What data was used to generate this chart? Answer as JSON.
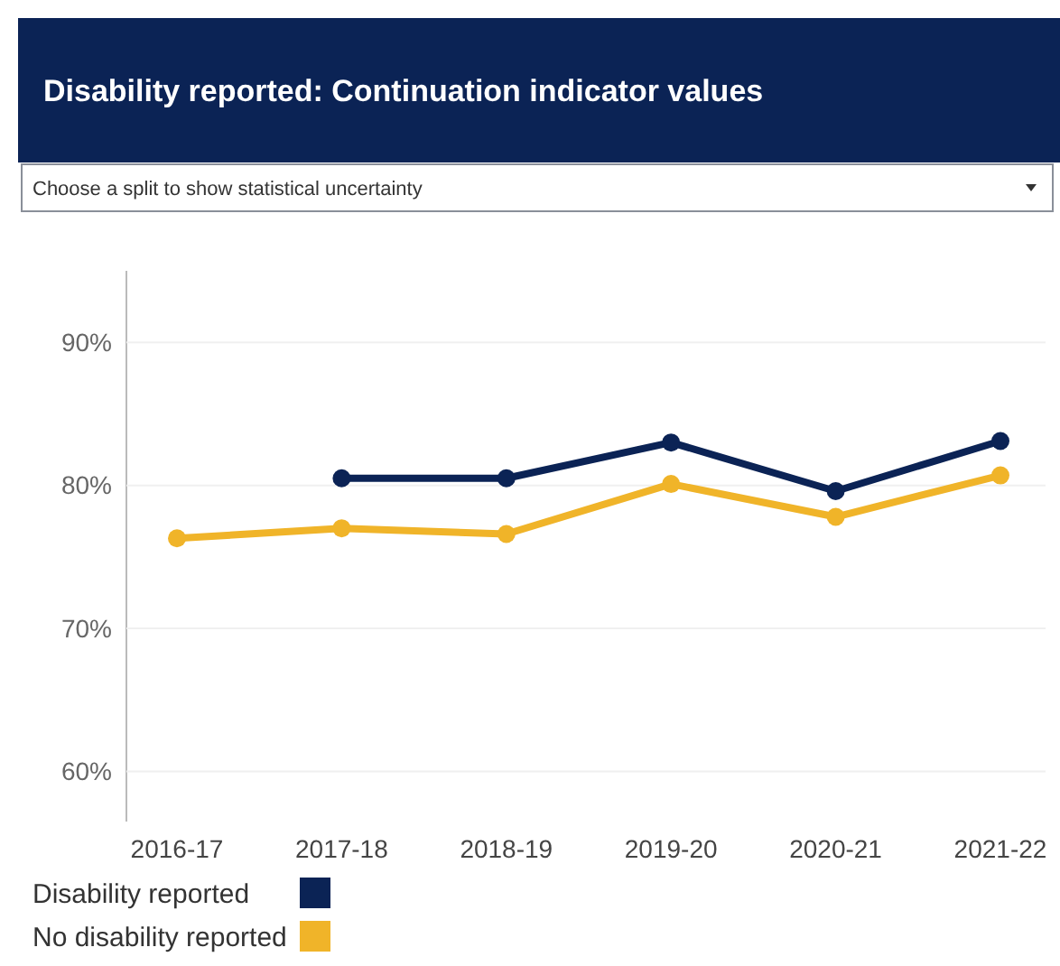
{
  "chart_data": {
    "type": "line",
    "title": "Disability reported: Continuation indicator values",
    "annotations": [
      "Choose a split to show statistical uncertainty"
    ],
    "categories": [
      "2016-17",
      "2017-18",
      "2018-19",
      "2019-20",
      "2020-21",
      "2021-22"
    ],
    "series": [
      {
        "name": "Disability reported",
        "color": "#0b2355",
        "values": [
          null,
          80.5,
          80.5,
          83.0,
          79.6,
          83.1
        ]
      },
      {
        "name": "No disability reported",
        "color": "#f0b429",
        "values": [
          76.3,
          77.0,
          76.6,
          80.1,
          77.8,
          80.7
        ]
      }
    ],
    "ylim": [
      56.5,
      95
    ],
    "yticks": [
      {
        "value": 60,
        "label": "60%"
      },
      {
        "value": 70,
        "label": "70%"
      },
      {
        "value": 80,
        "label": "80%"
      },
      {
        "value": 90,
        "label": "90%"
      }
    ],
    "grid": "y",
    "legend": "bottom left",
    "marker": "circle",
    "line_style": "solid"
  }
}
